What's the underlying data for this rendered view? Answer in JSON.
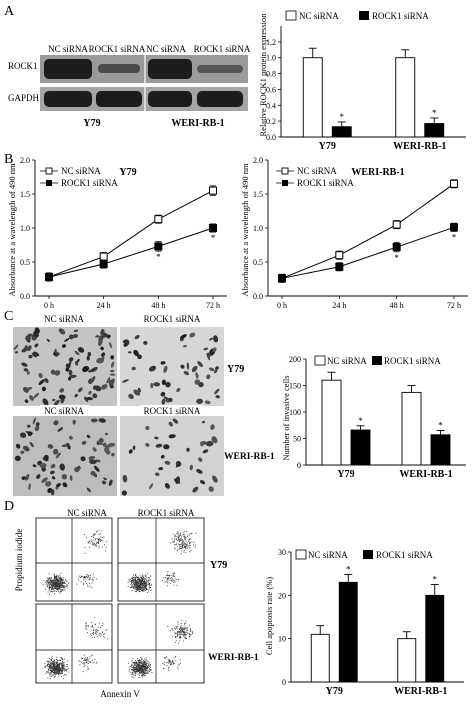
{
  "panel_letters": {
    "a": "A",
    "b": "B",
    "c": "C",
    "d": "D"
  },
  "blot": {
    "lane_labels": [
      "NC siRNA",
      "ROCK1 siRNA",
      "NC siRNA",
      "ROCK1 siRNA"
    ],
    "row_labels": [
      "ROCK1",
      "GAPDH"
    ],
    "cell_lines": [
      "Y79",
      "WERI-RB-1"
    ]
  },
  "invasion_images": {
    "column_labels": [
      "NC siRNA",
      "ROCK1 siRNA",
      "NC siRNA",
      "ROCK1 siRNA"
    ],
    "row_labels": [
      "Y79",
      "WERI-RB-1"
    ]
  },
  "flow": {
    "column_labels": [
      "NC siRNA",
      "ROCK1 siRNA"
    ],
    "row_labels": [
      "Y79",
      "WERI-RB-1"
    ],
    "xlabel": "Annexin V",
    "ylabel": "Propidium iodide"
  },
  "colors": {
    "nc_fill": "#ffffff",
    "rock1_fill": "#000000",
    "band": "#1c1c1c"
  },
  "chart_data": [
    {
      "id": "a-bar",
      "type": "bar",
      "categories": [
        "Y79",
        "WERI-RB-1"
      ],
      "series": [
        {
          "name": "NC siRNA",
          "values": [
            1.0,
            1.0
          ],
          "errors": [
            0.12,
            0.1
          ]
        },
        {
          "name": "ROCK1 siRNA",
          "values": [
            0.13,
            0.17
          ],
          "errors": [
            0.06,
            0.07
          ]
        }
      ],
      "annotations": [
        "*",
        "*"
      ],
      "ylabel": "Relative ROCK1 protein expression",
      "ylim": [
        0,
        1.4
      ],
      "yticks": [
        0,
        0.2,
        0.4,
        0.6,
        0.8,
        1.0,
        1.2
      ],
      "xlabel": ""
    },
    {
      "id": "b-line-y79",
      "type": "line",
      "title": "Y79",
      "x": [
        "0 h",
        "24 h",
        "48 h",
        "72 h"
      ],
      "series": [
        {
          "name": "NC siRNA",
          "values": [
            0.28,
            0.58,
            1.13,
            1.55
          ],
          "errors": [
            0.06,
            0.06,
            0.06,
            0.07
          ]
        },
        {
          "name": "ROCK1 siRNA",
          "values": [
            0.28,
            0.47,
            0.73,
            1.0
          ],
          "errors": [
            0.06,
            0.06,
            0.07,
            0.06
          ]
        }
      ],
      "annotations": [
        "*",
        "*"
      ],
      "ylabel": "Absorbance at a wavelength of 490 nm",
      "ylim": [
        0,
        2.0
      ],
      "yticks": [
        0.0,
        0.5,
        1.0,
        1.5,
        2.0
      ],
      "legend": "top-left"
    },
    {
      "id": "b-line-weri",
      "type": "line",
      "title": "WERI-RB-1",
      "x": [
        "0 h",
        "24 h",
        "48 h",
        "72 h"
      ],
      "series": [
        {
          "name": "NC siRNA",
          "values": [
            0.26,
            0.6,
            1.05,
            1.65
          ],
          "errors": [
            0.06,
            0.06,
            0.06,
            0.06
          ]
        },
        {
          "name": "ROCK1 siRNA",
          "values": [
            0.26,
            0.43,
            0.72,
            1.01
          ],
          "errors": [
            0.05,
            0.06,
            0.07,
            0.06
          ]
        }
      ],
      "annotations": [
        "*",
        "*"
      ],
      "ylabel": "Absorbance at a wavelength of 490 nm",
      "ylim": [
        0,
        2.0
      ],
      "yticks": [
        0.0,
        0.5,
        1.0,
        1.5,
        2.0
      ],
      "legend": "top-left"
    },
    {
      "id": "c-bar",
      "type": "bar",
      "categories": [
        "Y79",
        "WERI-RB-1"
      ],
      "series": [
        {
          "name": "NC siRNA",
          "values": [
            160,
            137
          ],
          "errors": [
            15,
            13
          ]
        },
        {
          "name": "ROCK1 siRNA",
          "values": [
            66,
            57
          ],
          "errors": [
            8,
            8
          ]
        }
      ],
      "annotations": [
        "*",
        "*"
      ],
      "ylabel": "Number of invasive cells",
      "ylim": [
        0,
        200
      ],
      "yticks": [
        0,
        50,
        100,
        150,
        200
      ],
      "legend": "top"
    },
    {
      "id": "d-bar",
      "type": "bar",
      "categories": [
        "Y79",
        "WERI-RB-1"
      ],
      "series": [
        {
          "name": "NC siRNA",
          "values": [
            11,
            10
          ],
          "errors": [
            2,
            1.6
          ]
        },
        {
          "name": "ROCK1 siRNA",
          "values": [
            23,
            20
          ],
          "errors": [
            1.8,
            2.5
          ]
        }
      ],
      "annotations": [
        "*",
        "*"
      ],
      "ylabel": "Cell apoptosis rate (%)",
      "ylim": [
        0,
        30
      ],
      "yticks": [
        0,
        10,
        20,
        30
      ],
      "legend": "top"
    }
  ]
}
